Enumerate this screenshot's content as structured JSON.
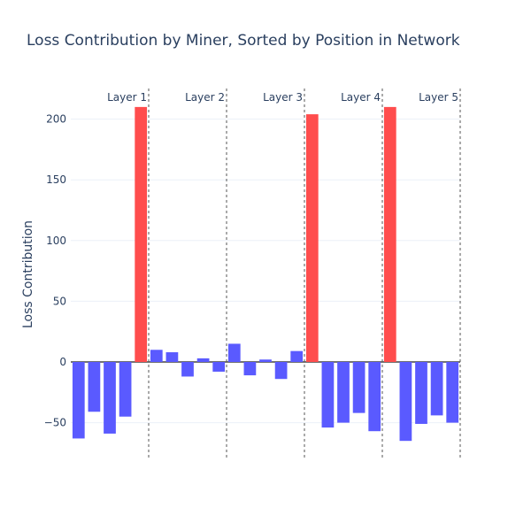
{
  "chart_data": {
    "type": "bar",
    "title": "Loss Contribution by Miner, Sorted by Position in Network",
    "xlabel": "",
    "ylabel": "Loss Contribution",
    "ylim": [
      -80,
      215
    ],
    "yticks": [
      -50,
      0,
      50,
      100,
      150,
      200
    ],
    "yticklabels": [
      "−50",
      "0",
      "50",
      "100",
      "150",
      "200"
    ],
    "grid": true,
    "colors": {
      "normal": "#5a5aff",
      "highlight": "#ff4d4d"
    },
    "values": [
      -63,
      -41,
      -59,
      -45,
      210,
      10,
      8,
      -12,
      3,
      -8,
      15,
      -11,
      2,
      -14,
      9,
      204,
      -54,
      -50,
      -42,
      -57,
      210,
      -65,
      -51,
      -44,
      -50
    ],
    "highlight": [
      false,
      false,
      false,
      false,
      true,
      false,
      false,
      false,
      false,
      false,
      false,
      false,
      false,
      false,
      false,
      true,
      false,
      false,
      false,
      false,
      true,
      false,
      false,
      false,
      false
    ],
    "layers": [
      {
        "label": "Layer 1",
        "end_index": 4
      },
      {
        "label": "Layer 2",
        "end_index": 9
      },
      {
        "label": "Layer 3",
        "end_index": 14
      },
      {
        "label": "Layer 4",
        "end_index": 19
      },
      {
        "label": "Layer 5",
        "end_index": 24
      }
    ]
  }
}
